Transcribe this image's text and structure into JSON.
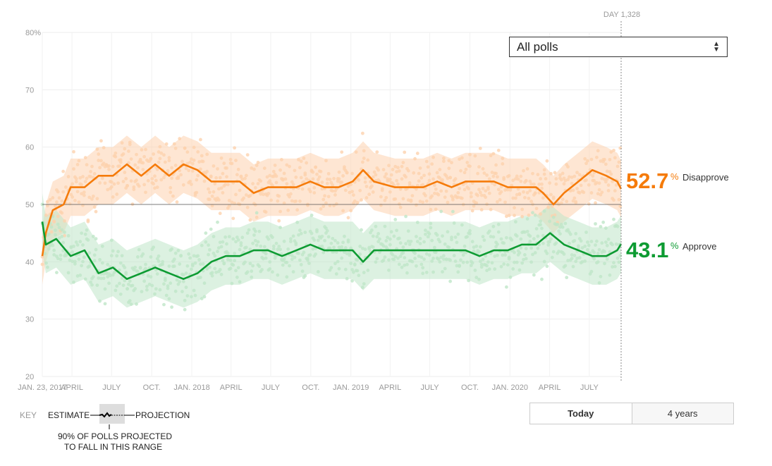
{
  "chart_data": {
    "type": "line",
    "title": "",
    "xlabel": "",
    "ylabel": "",
    "ylim": [
      20,
      80
    ],
    "xlim_days": [
      0,
      1328
    ],
    "grid": true,
    "y_ticks": [
      "80%",
      "70",
      "60",
      "50",
      "40",
      "30",
      "20"
    ],
    "y_tick_values": [
      80,
      70,
      60,
      50,
      40,
      30,
      20
    ],
    "x_ticks": [
      {
        "day": 0,
        "label": "JAN. 23, 2017"
      },
      {
        "day": 68,
        "label": "APRIL"
      },
      {
        "day": 159,
        "label": "JULY"
      },
      {
        "day": 251,
        "label": "OCT."
      },
      {
        "day": 343,
        "label": "JAN. 2018"
      },
      {
        "day": 433,
        "label": "APRIL"
      },
      {
        "day": 524,
        "label": "JULY"
      },
      {
        "day": 616,
        "label": "OCT."
      },
      {
        "day": 708,
        "label": "JAN. 2019"
      },
      {
        "day": 798,
        "label": "APRIL"
      },
      {
        "day": 889,
        "label": "JULY"
      },
      {
        "day": 981,
        "label": "OCT."
      },
      {
        "day": 1073,
        "label": "JAN. 2020"
      },
      {
        "day": 1164,
        "label": "APRIL"
      },
      {
        "day": 1255,
        "label": "JULY"
      }
    ],
    "marker_label": "DAY 1,328",
    "series": [
      {
        "name": "Disapprove",
        "color": "#f57b0a",
        "band_color": "#fdd2ae",
        "current_value": "52.7",
        "x": [
          0,
          8,
          24,
          49,
          65,
          97,
          129,
          162,
          194,
          227,
          259,
          291,
          324,
          356,
          388,
          421,
          453,
          485,
          518,
          550,
          583,
          615,
          647,
          680,
          712,
          736,
          761,
          809,
          841,
          874,
          906,
          939,
          971,
          1003,
          1036,
          1068,
          1100,
          1133,
          1149,
          1173,
          1197,
          1230,
          1262,
          1294,
          1319,
          1328
        ],
        "y": [
          41,
          45,
          49,
          50,
          53,
          53,
          55,
          55,
          57,
          55,
          57,
          55,
          57,
          56,
          54,
          54,
          54,
          52,
          53,
          53,
          53,
          54,
          53,
          53,
          54,
          56,
          54,
          53,
          53,
          53,
          54,
          53,
          54,
          54,
          54,
          53,
          53,
          53,
          52,
          50,
          52,
          54,
          56,
          55,
          54,
          52.7
        ]
      },
      {
        "name": "Approve",
        "color": "#0d9b32",
        "band_color": "#bfe6c8",
        "current_value": "43.1",
        "x": [
          0,
          8,
          32,
          65,
          97,
          129,
          162,
          194,
          227,
          259,
          291,
          324,
          356,
          388,
          421,
          453,
          485,
          518,
          550,
          583,
          615,
          647,
          680,
          712,
          736,
          761,
          809,
          841,
          874,
          906,
          939,
          971,
          1003,
          1036,
          1068,
          1100,
          1133,
          1165,
          1197,
          1230,
          1262,
          1294,
          1319,
          1328
        ],
        "y": [
          47,
          43,
          44,
          41,
          42,
          38,
          39,
          37,
          38,
          39,
          38,
          37,
          38,
          40,
          41,
          41,
          42,
          42,
          41,
          42,
          43,
          42,
          42,
          42,
          40,
          42,
          42,
          42,
          42,
          42,
          42,
          42,
          41,
          42,
          42,
          43,
          43,
          45,
          43,
          42,
          41,
          41,
          42,
          43.1
        ]
      }
    ]
  },
  "legend": {
    "percent_sign": "%",
    "disapprove_label": "Disapprove",
    "approve_label": "Approve"
  },
  "dropdown": {
    "selected": "All polls"
  },
  "range_buttons": [
    "Today",
    "4 years"
  ],
  "key": {
    "title": "KEY",
    "estimate": "ESTIMATE",
    "projection": "PROJECTION",
    "range_note_1": "90% OF POLLS PROJECTED",
    "range_note_2": "TO FALL IN THIS RANGE"
  }
}
